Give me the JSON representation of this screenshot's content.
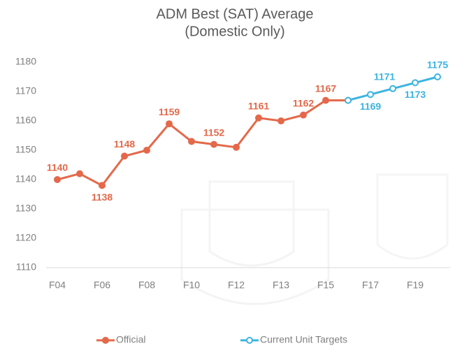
{
  "chart_data": {
    "type": "line",
    "title": [
      "ADM Best (SAT) Average",
      "(Domestic Only)"
    ],
    "categories": [
      "F04",
      null,
      "F06",
      null,
      "F08",
      null,
      "F10",
      null,
      "F12",
      null,
      "F13",
      null,
      "F15",
      null,
      "F17",
      null,
      "F19",
      null
    ],
    "series": [
      {
        "name": "Official",
        "color": "#e3694a",
        "values": [
          1140,
          1142,
          1138,
          1148,
          1150,
          1159,
          1153,
          1152,
          1151,
          1161,
          1160,
          1162,
          1167,
          1167,
          null,
          null,
          null,
          null
        ],
        "value_labels": [
          1140,
          null,
          1138,
          1148,
          null,
          1159,
          null,
          1152,
          null,
          1161,
          null,
          1162,
          1167,
          null,
          null,
          null,
          null,
          null
        ]
      },
      {
        "name": "Current Unit Targets",
        "color": "#3cb4e0",
        "values": [
          null,
          null,
          null,
          null,
          null,
          null,
          null,
          null,
          null,
          null,
          null,
          null,
          null,
          1167,
          1169,
          1171,
          1173,
          1175
        ],
        "value_labels": [
          null,
          null,
          null,
          null,
          null,
          null,
          null,
          null,
          null,
          null,
          null,
          null,
          null,
          null,
          1169,
          1171,
          1173,
          1175
        ]
      }
    ],
    "ylim": [
      1110,
      1180
    ],
    "yticks": [
      1110,
      1120,
      1130,
      1140,
      1150,
      1160,
      1170,
      1180
    ],
    "grid": false,
    "legend": "bottom"
  }
}
